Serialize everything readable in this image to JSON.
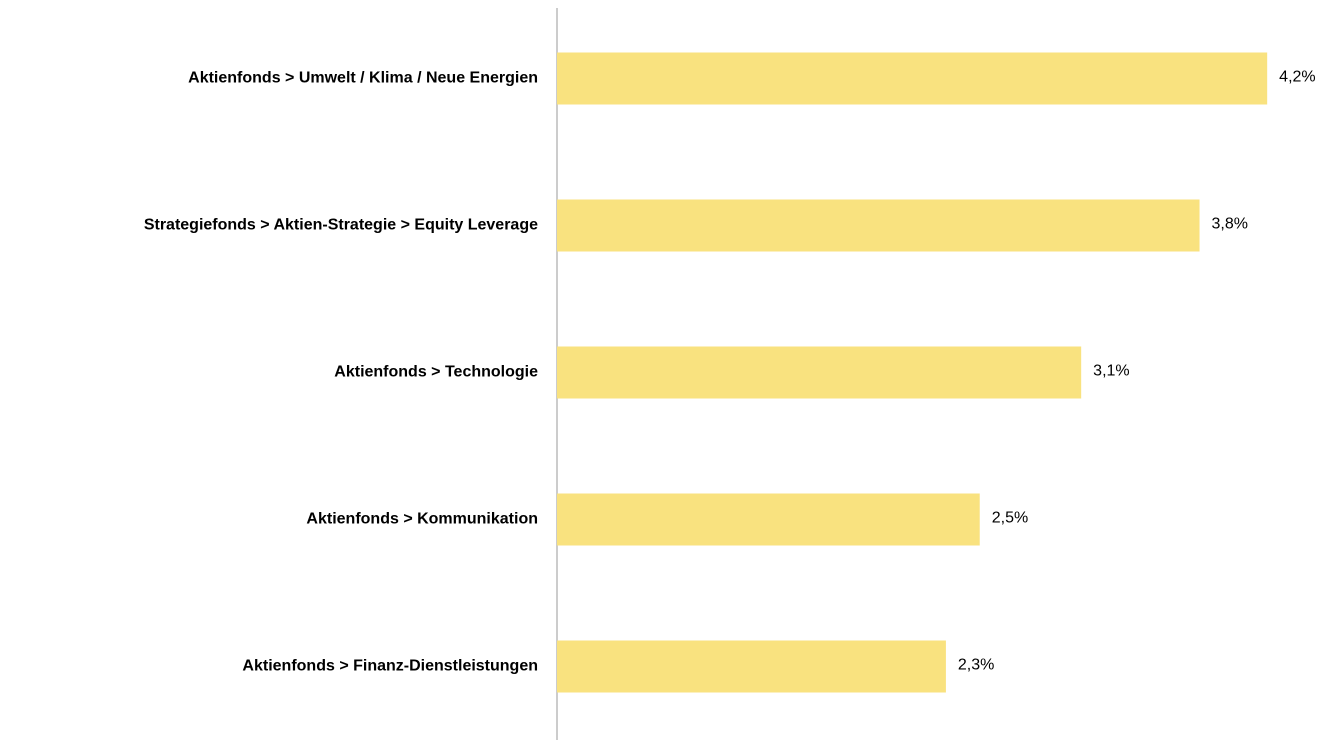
{
  "chart_data": {
    "type": "hbar",
    "categories": [
      "Aktienfonds > Umwelt / Klima / Neue Energien",
      "Strategiefonds > Aktien-Strategie > Equity Leverage",
      "Aktienfonds > Technologie",
      "Aktienfonds > Kommunikation",
      "Aktienfonds > Finanz-Dienstleistungen"
    ],
    "values": [
      4.2,
      3.8,
      3.1,
      2.5,
      2.3
    ],
    "value_labels": [
      "4,2%",
      "3,8%",
      "3,1%",
      "2,5%",
      "2,3%"
    ],
    "color": "#f9e27f",
    "xlim": [
      0,
      4.4
    ]
  }
}
